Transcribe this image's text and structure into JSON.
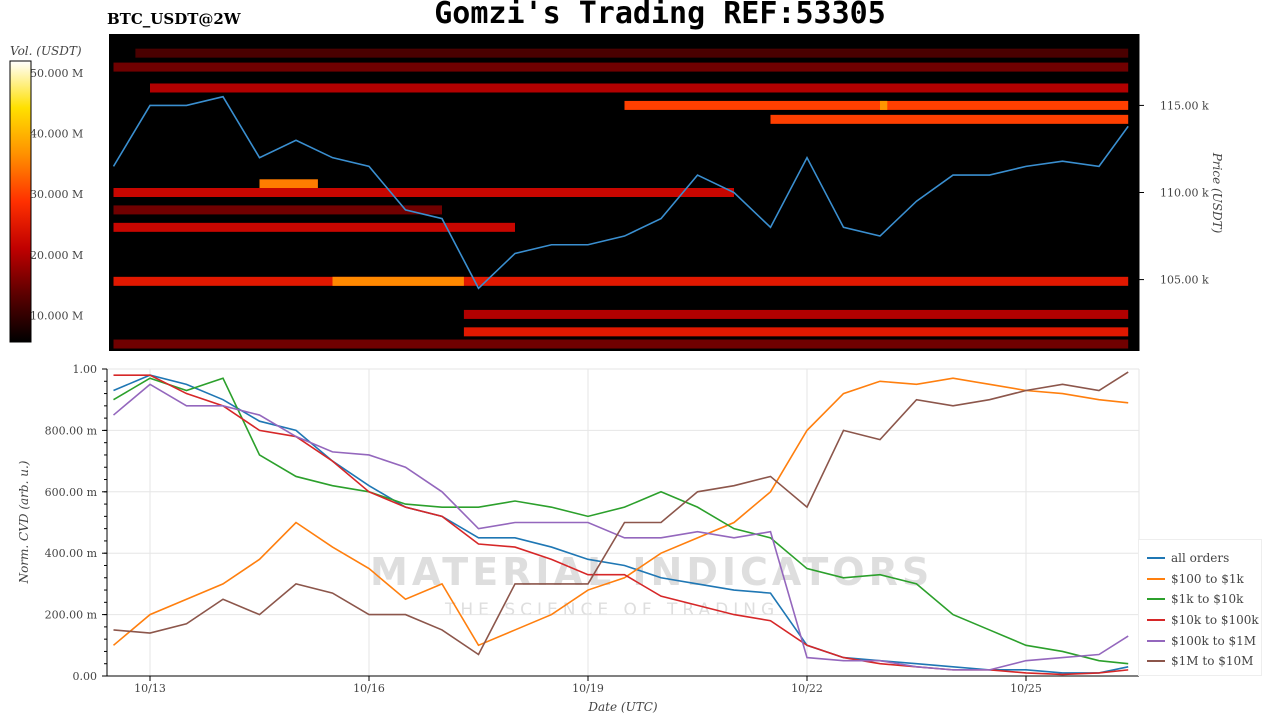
{
  "title": "Gomzi's Trading REF:53305",
  "symbol": "BTC_USDT@2W",
  "watermark": {
    "line1": "MATERIAL INDICATORS",
    "line2": "THE SCIENCE OF TRADING"
  },
  "chart_data": [
    {
      "type": "heatmap",
      "colorbar_label": "Vol. (USDT)",
      "colorbar_ticks": [
        "10.000 M",
        "20.000 M",
        "30.000 M",
        "40.000 M",
        "50.000 M"
      ],
      "colorbar_range": [
        5.6,
        52
      ],
      "ylabel": "Price (USDT)",
      "y_ticks": [
        "105.00 k",
        "110.00 k",
        "115.00 k"
      ],
      "ylim": [
        100.9,
        119.1
      ],
      "colormap": [
        "#000000",
        "#5a0000",
        "#c00000",
        "#ff3000",
        "#ff9000",
        "#ffe000",
        "#ffffff"
      ],
      "bands": [
        {
          "price": 118.0,
          "from": 12.8,
          "to": 26.4,
          "vol": 12
        },
        {
          "price": 117.2,
          "from": 12.5,
          "to": 26.4,
          "vol": 15
        },
        {
          "price": 116.0,
          "from": 13.0,
          "to": 26.4,
          "vol": 20
        },
        {
          "price": 115.0,
          "from": 19.5,
          "to": 26.4,
          "vol": 30
        },
        {
          "price": 115.0,
          "from": 23.0,
          "to": 23.1,
          "vol": 37
        },
        {
          "price": 114.2,
          "from": 21.5,
          "to": 26.4,
          "vol": 30
        },
        {
          "price": 110.5,
          "from": 14.5,
          "to": 15.3,
          "vol": 35
        },
        {
          "price": 110.0,
          "from": 12.5,
          "to": 21.0,
          "vol": 22
        },
        {
          "price": 109.0,
          "from": 12.5,
          "to": 17.0,
          "vol": 15
        },
        {
          "price": 108.0,
          "from": 12.5,
          "to": 18.0,
          "vol": 22
        },
        {
          "price": 104.9,
          "from": 12.5,
          "to": 26.4,
          "vol": 25
        },
        {
          "price": 104.9,
          "from": 15.5,
          "to": 17.3,
          "vol": 36
        },
        {
          "price": 103.0,
          "from": 17.3,
          "to": 26.4,
          "vol": 20
        },
        {
          "price": 102.0,
          "from": 17.3,
          "to": 26.4,
          "vol": 25
        },
        {
          "price": 101.3,
          "from": 12.5,
          "to": 26.4,
          "vol": 15
        }
      ],
      "price_line": {
        "color": "#3a8fd0",
        "x": [
          12.5,
          13,
          13.5,
          14,
          14.5,
          15,
          15.5,
          16,
          16.5,
          17,
          17.5,
          18,
          18.5,
          19,
          19.5,
          20,
          20.5,
          21,
          21.5,
          22,
          22.5,
          23,
          23.5,
          24,
          24.5,
          25,
          25.5,
          26,
          26.4
        ],
        "y": [
          111.5,
          115,
          115,
          115.5,
          112,
          113,
          112,
          111.5,
          109,
          108.5,
          104.5,
          106.5,
          107,
          107,
          107.5,
          108.5,
          111,
          110,
          108,
          112,
          108,
          107.5,
          109.5,
          111,
          111,
          111.5,
          111.8,
          111.5,
          113.8
        ]
      }
    },
    {
      "type": "line",
      "xlabel": "Date (UTC)",
      "ylabel": "Norm. CVD (arb. u.)",
      "ylim": [
        0,
        1
      ],
      "xlim": [
        12.43,
        26.55
      ],
      "x_ticks": [
        {
          "day": 13,
          "label": "10/13"
        },
        {
          "day": 16,
          "label": "10/16"
        },
        {
          "day": 19,
          "label": "10/19"
        },
        {
          "day": 22,
          "label": "10/22"
        },
        {
          "day": 25,
          "label": "10/25"
        }
      ],
      "y_ticks": [
        {
          "v": 0,
          "label": "0.00"
        },
        {
          "v": 0.2,
          "label": "200.00 m"
        },
        {
          "v": 0.4,
          "label": "400.00 m"
        },
        {
          "v": 0.6,
          "label": "600.00 m"
        },
        {
          "v": 0.8,
          "label": "800.00 m"
        },
        {
          "v": 1,
          "label": "1.00"
        }
      ],
      "x": [
        12.5,
        13,
        13.5,
        14,
        14.5,
        15,
        15.5,
        16,
        16.5,
        17,
        17.5,
        18,
        18.5,
        19,
        19.5,
        20,
        20.5,
        21,
        21.5,
        22,
        22.5,
        23,
        23.5,
        24,
        24.5,
        25,
        25.5,
        26,
        26.4
      ],
      "legend_position": "bottom-right",
      "series": [
        {
          "name": "all orders",
          "color": "#1f77b4",
          "values": [
            0.93,
            0.98,
            0.95,
            0.9,
            0.83,
            0.8,
            0.7,
            0.62,
            0.55,
            0.52,
            0.45,
            0.45,
            0.42,
            0.38,
            0.36,
            0.32,
            0.3,
            0.28,
            0.27,
            0.1,
            0.06,
            0.05,
            0.04,
            0.03,
            0.02,
            0.02,
            0.01,
            0.01,
            0.03
          ]
        },
        {
          "name": "$100 to $1k",
          "color": "#ff7f0e",
          "values": [
            0.1,
            0.2,
            0.25,
            0.3,
            0.38,
            0.5,
            0.42,
            0.35,
            0.25,
            0.3,
            0.1,
            0.15,
            0.2,
            0.28,
            0.32,
            0.4,
            0.45,
            0.5,
            0.6,
            0.8,
            0.92,
            0.96,
            0.95,
            0.97,
            0.95,
            0.93,
            0.92,
            0.9,
            0.89
          ]
        },
        {
          "name": "$1k to $10k",
          "color": "#2ca02c",
          "values": [
            0.9,
            0.97,
            0.93,
            0.97,
            0.72,
            0.65,
            0.62,
            0.6,
            0.56,
            0.55,
            0.55,
            0.57,
            0.55,
            0.52,
            0.55,
            0.6,
            0.55,
            0.48,
            0.45,
            0.35,
            0.32,
            0.33,
            0.3,
            0.2,
            0.15,
            0.1,
            0.08,
            0.05,
            0.04
          ]
        },
        {
          "name": "$10k to $100k",
          "color": "#d62728",
          "values": [
            0.98,
            0.98,
            0.92,
            0.88,
            0.8,
            0.78,
            0.7,
            0.6,
            0.55,
            0.52,
            0.43,
            0.42,
            0.38,
            0.33,
            0.33,
            0.26,
            0.23,
            0.2,
            0.18,
            0.1,
            0.06,
            0.04,
            0.03,
            0.02,
            0.02,
            0.01,
            0.005,
            0.01,
            0.02
          ]
        },
        {
          "name": "$100k to $1M",
          "color": "#9467bd",
          "values": [
            0.85,
            0.95,
            0.88,
            0.88,
            0.85,
            0.78,
            0.73,
            0.72,
            0.68,
            0.6,
            0.48,
            0.5,
            0.5,
            0.5,
            0.45,
            0.45,
            0.47,
            0.45,
            0.47,
            0.06,
            0.05,
            0.05,
            0.03,
            0.02,
            0.02,
            0.05,
            0.06,
            0.07,
            0.13
          ]
        },
        {
          "name": "$1M to $10M",
          "color": "#8c564b",
          "values": [
            0.15,
            0.14,
            0.17,
            0.25,
            0.2,
            0.3,
            0.27,
            0.2,
            0.2,
            0.15,
            0.07,
            0.3,
            0.3,
            0.3,
            0.5,
            0.5,
            0.6,
            0.62,
            0.65,
            0.55,
            0.8,
            0.77,
            0.9,
            0.88,
            0.9,
            0.93,
            0.95,
            0.93,
            0.99
          ]
        }
      ]
    }
  ]
}
